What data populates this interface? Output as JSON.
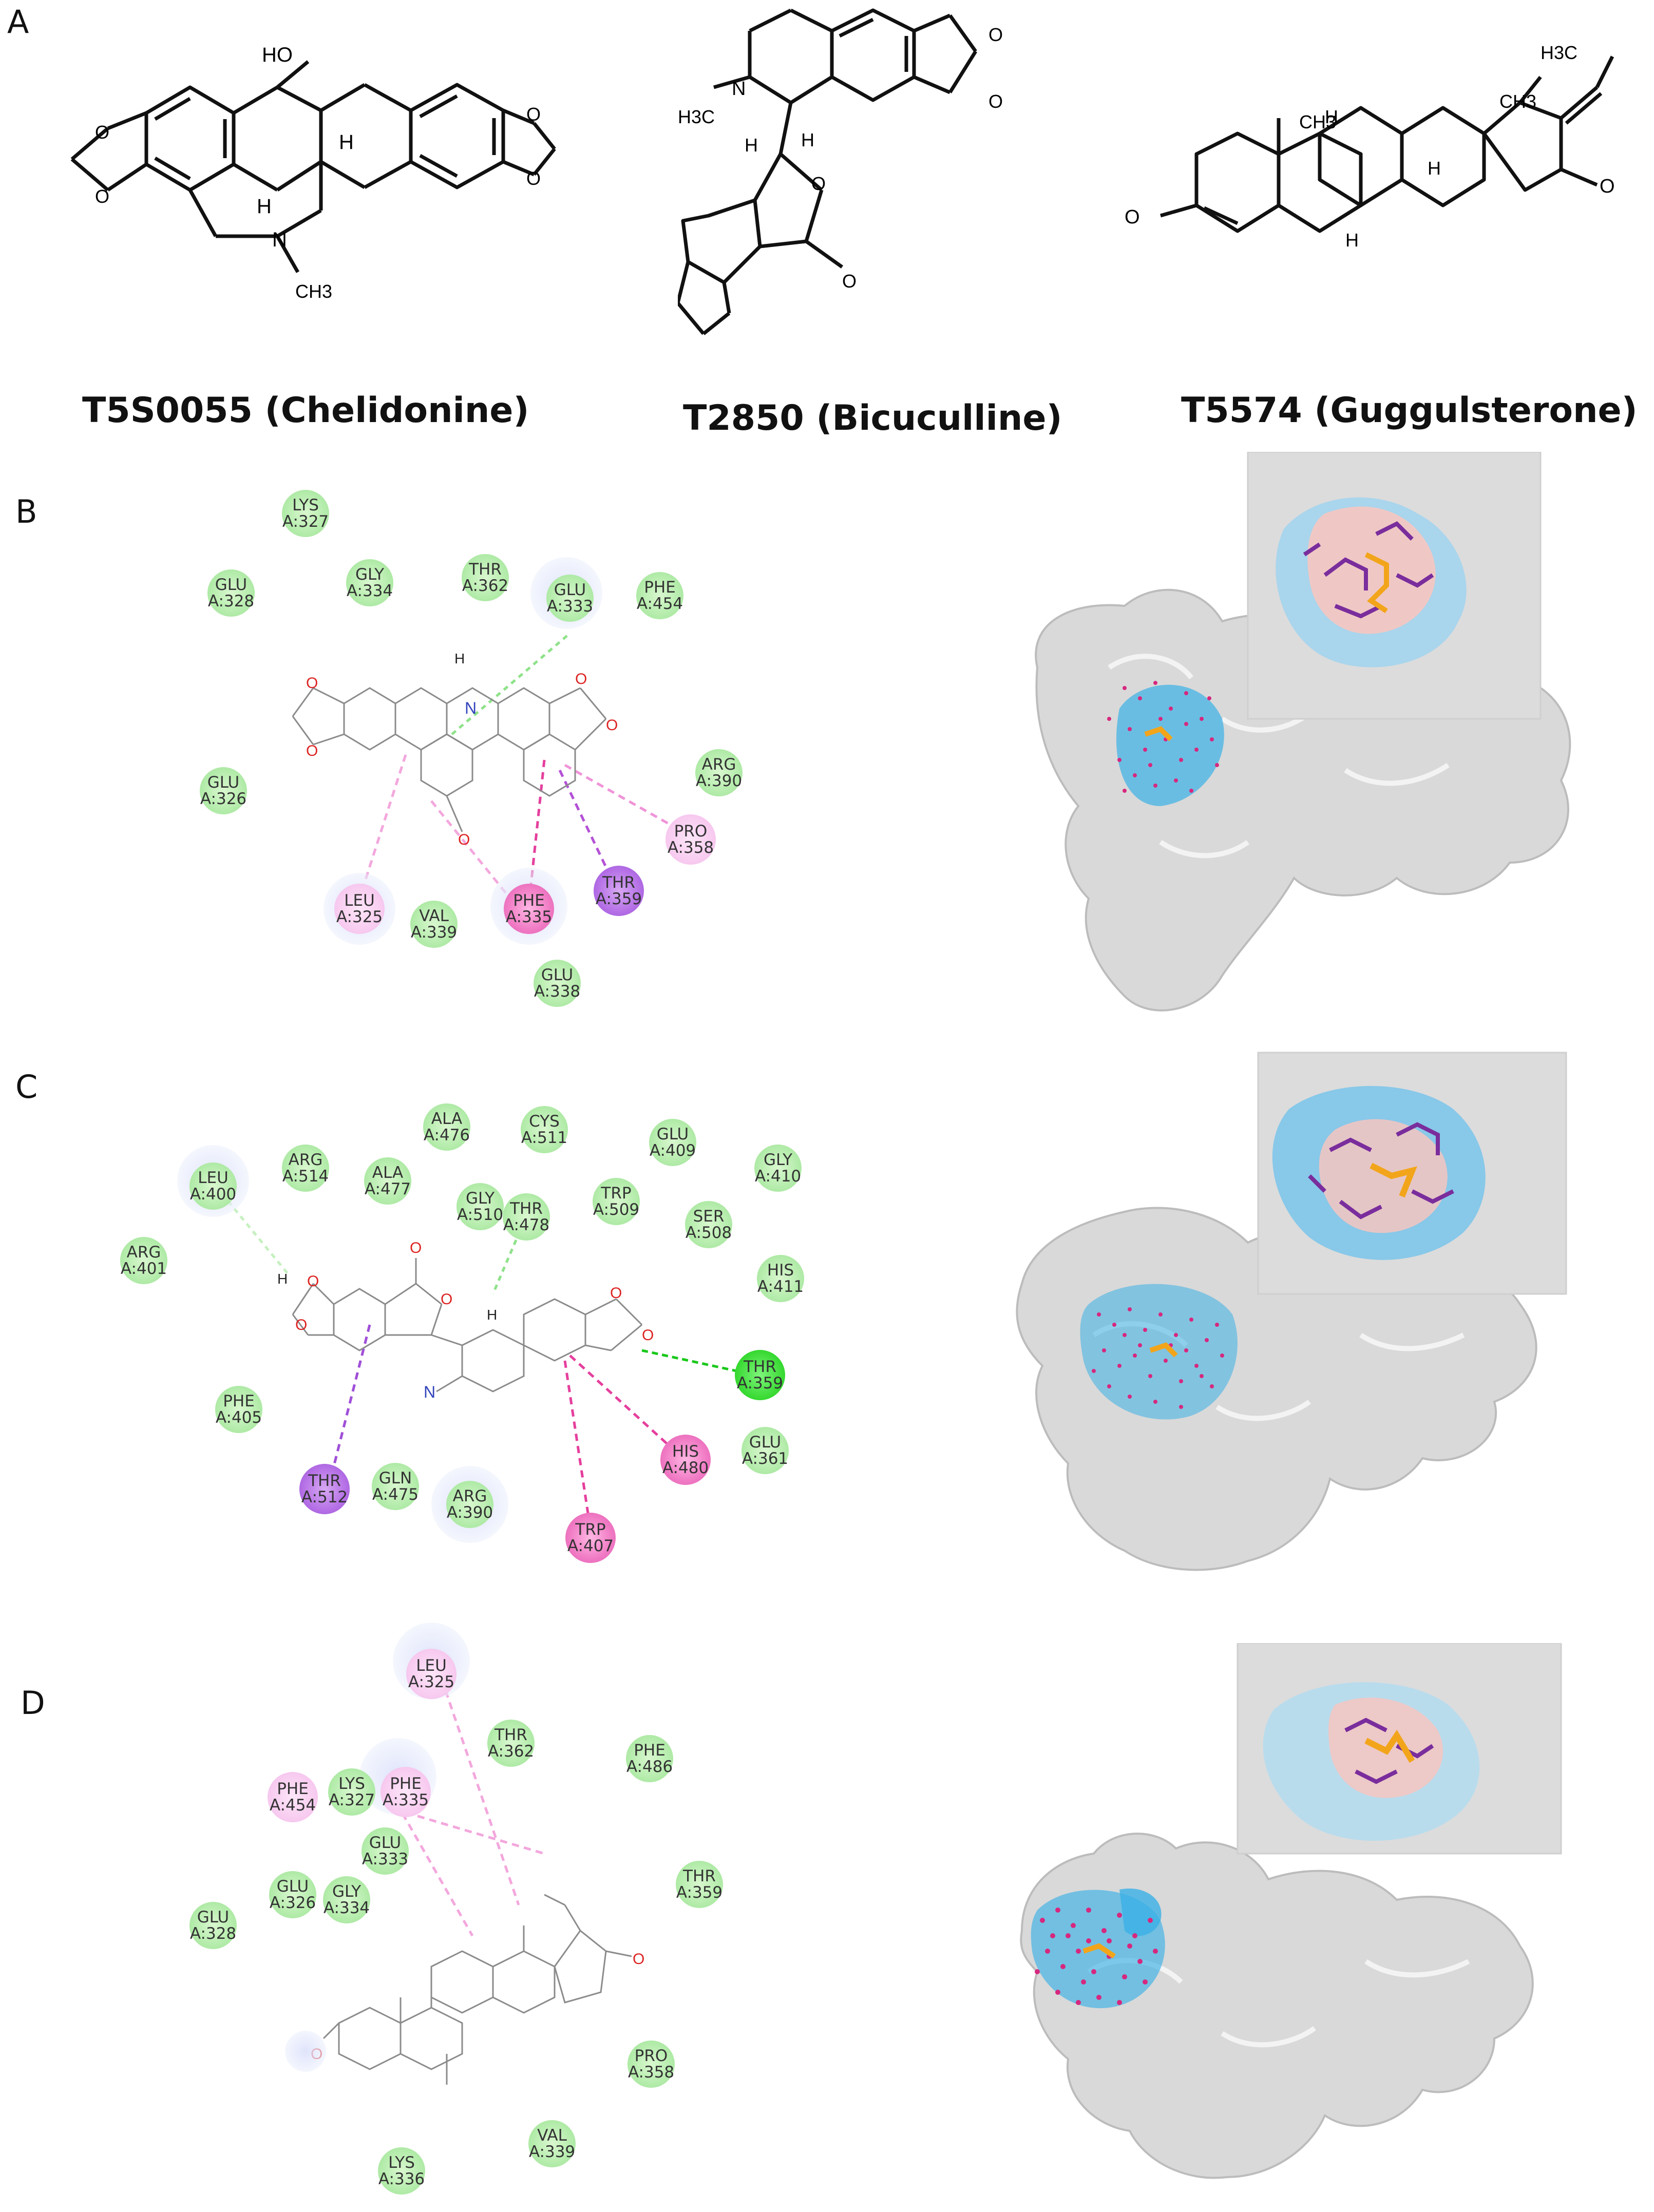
{
  "panels": [
    "A",
    "B",
    "C",
    "D"
  ],
  "compounds": [
    {
      "id": "T5S0055",
      "name": "(Chelidonine)"
    },
    {
      "id": "T2850",
      "name": "(Bicuculline)"
    },
    {
      "id": "T5574",
      "name": "(Guggulsterone)"
    }
  ],
  "structure_labels": {
    "chelidonine": {
      "ho": "HO",
      "h1": "H",
      "h2": "H",
      "n": "N",
      "ch3": "CH3",
      "o": "O"
    },
    "bicuculline": {
      "h3c": "H3C",
      "n": "N",
      "h1": "H",
      "h2": "H",
      "o": "O"
    },
    "guggulsterone": {
      "h3c_top": "H3C",
      "ch3_a": "CH3",
      "ch3_b": "CH3",
      "h1": "H",
      "h2": "H",
      "h3": "H",
      "o": "O"
    }
  },
  "interaction_maps": {
    "B": [
      {
        "res": "LYS",
        "pos": "A:327",
        "type": "green"
      },
      {
        "res": "GLU",
        "pos": "A:328",
        "type": "green"
      },
      {
        "res": "GLY",
        "pos": "A:334",
        "type": "green"
      },
      {
        "res": "THR",
        "pos": "A:362",
        "type": "green"
      },
      {
        "res": "GLU",
        "pos": "A:333",
        "type": "green"
      },
      {
        "res": "PHE",
        "pos": "A:454",
        "type": "green"
      },
      {
        "res": "ARG",
        "pos": "A:390",
        "type": "green"
      },
      {
        "res": "GLU",
        "pos": "A:326",
        "type": "green"
      },
      {
        "res": "PRO",
        "pos": "A:358",
        "type": "lightpink"
      },
      {
        "res": "THR",
        "pos": "A:359",
        "type": "purple"
      },
      {
        "res": "LEU",
        "pos": "A:325",
        "type": "lightpink"
      },
      {
        "res": "VAL",
        "pos": "A:339",
        "type": "green"
      },
      {
        "res": "PHE",
        "pos": "A:335",
        "type": "pink"
      },
      {
        "res": "GLU",
        "pos": "A:338",
        "type": "green"
      }
    ],
    "C": [
      {
        "res": "ALA",
        "pos": "A:476",
        "type": "green"
      },
      {
        "res": "CYS",
        "pos": "A:511",
        "type": "green"
      },
      {
        "res": "GLU",
        "pos": "A:409",
        "type": "green"
      },
      {
        "res": "ARG",
        "pos": "A:514",
        "type": "green"
      },
      {
        "res": "GLY",
        "pos": "A:410",
        "type": "green"
      },
      {
        "res": "LEU",
        "pos": "A:400",
        "type": "green"
      },
      {
        "res": "ALA",
        "pos": "A:477",
        "type": "green"
      },
      {
        "res": "TRP",
        "pos": "A:509",
        "type": "green"
      },
      {
        "res": "GLY",
        "pos": "A:510",
        "type": "green"
      },
      {
        "res": "THR",
        "pos": "A:478",
        "type": "green"
      },
      {
        "res": "SER",
        "pos": "A:508",
        "type": "green"
      },
      {
        "res": "ARG",
        "pos": "A:401",
        "type": "green"
      },
      {
        "res": "HIS",
        "pos": "A:411",
        "type": "green"
      },
      {
        "res": "THR",
        "pos": "A:359",
        "type": "brightgreen"
      },
      {
        "res": "PHE",
        "pos": "A:405",
        "type": "green"
      },
      {
        "res": "GLU",
        "pos": "A:361",
        "type": "green"
      },
      {
        "res": "HIS",
        "pos": "A:480",
        "type": "pink"
      },
      {
        "res": "THR",
        "pos": "A:512",
        "type": "purple"
      },
      {
        "res": "GLN",
        "pos": "A:475",
        "type": "green"
      },
      {
        "res": "ARG",
        "pos": "A:390",
        "type": "green"
      },
      {
        "res": "TRP",
        "pos": "A:407",
        "type": "pink"
      }
    ],
    "D": [
      {
        "res": "LEU",
        "pos": "A:325",
        "type": "lightpink"
      },
      {
        "res": "THR",
        "pos": "A:362",
        "type": "green"
      },
      {
        "res": "PHE",
        "pos": "A:486",
        "type": "green"
      },
      {
        "res": "PHE",
        "pos": "A:454",
        "type": "lightpink"
      },
      {
        "res": "LYS",
        "pos": "A:327",
        "type": "green"
      },
      {
        "res": "PHE",
        "pos": "A:335",
        "type": "lightpink"
      },
      {
        "res": "GLU",
        "pos": "A:333",
        "type": "green"
      },
      {
        "res": "THR",
        "pos": "A:359",
        "type": "green"
      },
      {
        "res": "GLU",
        "pos": "A:326",
        "type": "green"
      },
      {
        "res": "GLY",
        "pos": "A:334",
        "type": "green"
      },
      {
        "res": "GLU",
        "pos": "A:328",
        "type": "green"
      },
      {
        "res": "PRO",
        "pos": "A:358",
        "type": "green"
      },
      {
        "res": "VAL",
        "pos": "A:339",
        "type": "green"
      },
      {
        "res": "LYS",
        "pos": "A:336",
        "type": "green"
      }
    ]
  },
  "ligand_labels": {
    "h": "H",
    "n": "N",
    "o": "O"
  },
  "colors": {
    "protein_surface": "#d9d9d9",
    "binding_site_blue": "#3ab0e6",
    "binding_dots": "#d6287e",
    "ligand": "#f2a51a",
    "residue_sticks": "#7a2d9c",
    "pocket_pink": "#f6c6c0"
  }
}
